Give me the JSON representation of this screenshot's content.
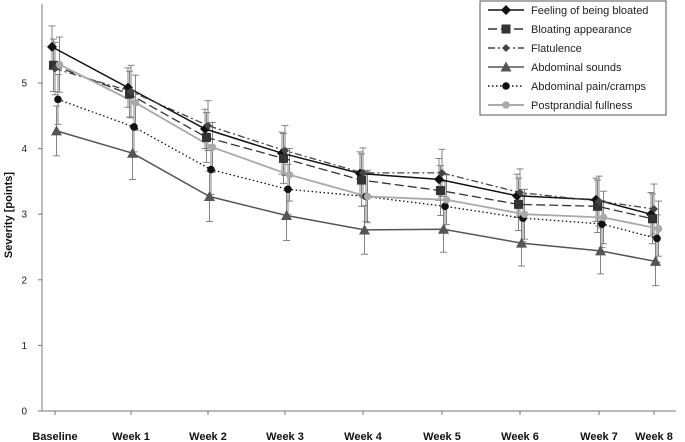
{
  "chart_data": {
    "type": "line",
    "title": "",
    "xlabel": "",
    "ylabel": "Severity [points]",
    "ylim": [
      0,
      6
    ],
    "yticks": [
      0,
      1,
      2,
      3,
      4,
      5
    ],
    "grid": false,
    "legend_position": "top-right",
    "categories": [
      "Baseline",
      "Week 1",
      "Week 2",
      "Week 3",
      "Week 4",
      "Week 5",
      "Week 6",
      "Week 7",
      "Week 8"
    ],
    "series": [
      {
        "name": "Feeling of being bloated",
        "color": "#111111",
        "line_style": "solid",
        "marker": "diamond",
        "values": [
          5.55,
          4.93,
          4.3,
          3.93,
          3.62,
          3.53,
          3.28,
          3.22,
          3.0
        ],
        "error": [
          0.32,
          0.3,
          0.3,
          0.32,
          0.33,
          0.32,
          0.33,
          0.33,
          0.33
        ]
      },
      {
        "name": "Bloating appearance",
        "color": "#333333",
        "line_style": "longdash",
        "marker": "square",
        "values": [
          5.27,
          4.83,
          4.17,
          3.85,
          3.52,
          3.36,
          3.15,
          3.12,
          2.93
        ],
        "error": [
          0.4,
          0.35,
          0.38,
          0.38,
          0.4,
          0.38,
          0.4,
          0.4,
          0.38
        ]
      },
      {
        "name": "Flatulence",
        "color": "#444444",
        "line_style": "dashdot",
        "marker": "smalldiamond",
        "values": [
          5.22,
          4.87,
          4.35,
          3.97,
          3.63,
          3.63,
          3.33,
          3.2,
          3.08
        ],
        "error": [
          0.4,
          0.4,
          0.38,
          0.38,
          0.38,
          0.36,
          0.36,
          0.38,
          0.38
        ]
      },
      {
        "name": "Abdominal sounds",
        "color": "#555555",
        "line_style": "solid",
        "marker": "triangle",
        "values": [
          4.27,
          3.93,
          3.27,
          2.98,
          2.76,
          2.77,
          2.56,
          2.44,
          2.28
        ],
        "error": [
          0.38,
          0.4,
          0.38,
          0.38,
          0.37,
          0.35,
          0.35,
          0.35,
          0.37
        ]
      },
      {
        "name": "Abdominal pain/cramps",
        "color": "#111111",
        "line_style": "dotted",
        "marker": "circle",
        "values": [
          4.75,
          4.33,
          3.68,
          3.38,
          3.27,
          3.12,
          2.94,
          2.85,
          2.63
        ],
        "error": [
          0.38,
          0.38,
          0.38,
          0.38,
          0.38,
          0.38,
          0.36,
          0.36,
          0.36
        ]
      },
      {
        "name": "Postprandial fullness",
        "color": "#aaaaaa",
        "line_style": "solid",
        "marker": "circle",
        "values": [
          5.28,
          4.7,
          4.02,
          3.6,
          3.27,
          3.22,
          3.0,
          2.95,
          2.78
        ],
        "error": [
          0.42,
          0.42,
          0.38,
          0.4,
          0.4,
          0.38,
          0.38,
          0.4,
          0.42
        ]
      }
    ]
  }
}
